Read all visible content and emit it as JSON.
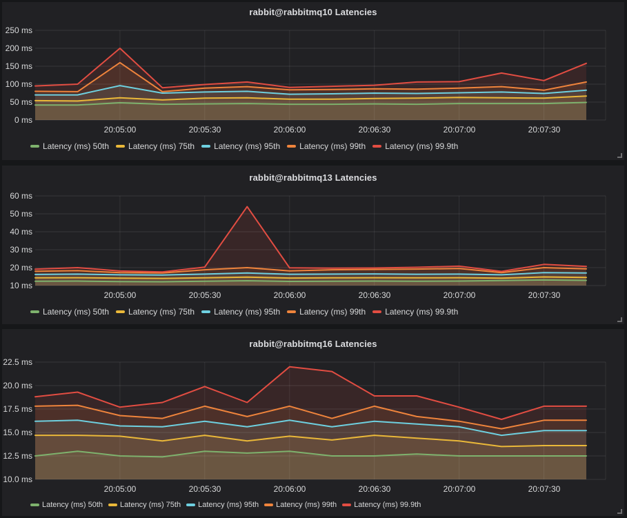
{
  "page": {
    "background": "#161719",
    "panel_background": "#212124"
  },
  "palette": {
    "green": "#7EB26D",
    "yellow": "#EAB839",
    "cyan": "#6ED0E0",
    "orange": "#EF843C",
    "red": "#E24D42"
  },
  "chart_data": [
    {
      "type": "area",
      "title": "rabbit@rabbitmq10 Latencies",
      "unit": "ms",
      "grid": true,
      "legend_position": "bottom",
      "ylim": [
        0,
        250
      ],
      "y_tick_values": [
        0,
        50,
        100,
        150,
        200,
        250
      ],
      "y_tick_labels": [
        "0 ms",
        "50 ms",
        "100 ms",
        "150 ms",
        "200 ms",
        "250 ms"
      ],
      "x_tick_labels": [
        "20:05:00",
        "20:05:30",
        "20:06:00",
        "20:06:30",
        "20:07:00",
        "20:07:30"
      ],
      "x": [
        "20:04:30",
        "20:04:45",
        "20:05:00",
        "20:05:15",
        "20:05:30",
        "20:05:45",
        "20:06:00",
        "20:06:15",
        "20:06:30",
        "20:06:45",
        "20:07:00",
        "20:07:15",
        "20:07:30",
        "20:07:45"
      ],
      "series": [
        {
          "name": "Latency (ms) 50th",
          "color": "#7EB26D",
          "values": [
            42,
            42,
            48,
            44,
            45,
            46,
            44,
            44,
            45,
            44,
            46,
            46,
            46,
            49
          ]
        },
        {
          "name": "Latency (ms) 75th",
          "color": "#EAB839",
          "values": [
            54,
            53,
            62,
            56,
            61,
            62,
            58,
            58,
            60,
            61,
            63,
            62,
            61,
            67
          ]
        },
        {
          "name": "Latency (ms) 95th",
          "color": "#6ED0E0",
          "values": [
            70,
            70,
            96,
            75,
            78,
            80,
            72,
            73,
            75,
            74,
            76,
            78,
            74,
            83
          ]
        },
        {
          "name": "Latency (ms) 99th",
          "color": "#EF843C",
          "values": [
            80,
            79,
            160,
            79,
            89,
            93,
            84,
            85,
            87,
            86,
            89,
            93,
            83,
            106
          ]
        },
        {
          "name": "Latency (ms) 99.9th",
          "color": "#E24D42",
          "values": [
            95,
            100,
            200,
            90,
            99,
            106,
            91,
            94,
            97,
            106,
            107,
            131,
            110,
            158
          ]
        }
      ]
    },
    {
      "type": "area",
      "title": "rabbit@rabbitmq13 Latencies",
      "unit": "ms",
      "grid": true,
      "legend_position": "bottom",
      "ylim": [
        10,
        60
      ],
      "y_tick_values": [
        10,
        20,
        30,
        40,
        50,
        60
      ],
      "y_tick_labels": [
        "10 ms",
        "20 ms",
        "30 ms",
        "40 ms",
        "50 ms",
        "60 ms"
      ],
      "x_tick_labels": [
        "20:05:00",
        "20:05:30",
        "20:06:00",
        "20:06:30",
        "20:07:00",
        "20:07:30"
      ],
      "x": [
        "20:04:30",
        "20:04:45",
        "20:05:00",
        "20:05:15",
        "20:05:30",
        "20:05:45",
        "20:06:00",
        "20:06:15",
        "20:06:30",
        "20:06:45",
        "20:07:00",
        "20:07:15",
        "20:07:30",
        "20:07:45"
      ],
      "series": [
        {
          "name": "Latency (ms) 50th",
          "color": "#7EB26D",
          "values": [
            12.4,
            12.5,
            12.2,
            12.1,
            12.4,
            12.7,
            12.3,
            12.4,
            12.5,
            12.4,
            12.5,
            12.8,
            13.1,
            12.9
          ]
        },
        {
          "name": "Latency (ms) 75th",
          "color": "#EAB839",
          "values": [
            14.3,
            14.4,
            14.1,
            14.0,
            14.3,
            14.7,
            14.2,
            14.3,
            14.4,
            14.3,
            14.4,
            14.1,
            14.8,
            14.5
          ]
        },
        {
          "name": "Latency (ms) 95th",
          "color": "#6ED0E0",
          "values": [
            16.2,
            16.4,
            16.0,
            15.9,
            16.4,
            17.0,
            16.3,
            16.4,
            16.5,
            16.3,
            16.4,
            16.0,
            17.2,
            17.0
          ]
        },
        {
          "name": "Latency (ms) 99th",
          "color": "#EF843C",
          "values": [
            18.0,
            18.3,
            17.2,
            17.0,
            18.8,
            20.0,
            18.2,
            18.8,
            19.0,
            19.2,
            19.5,
            17.2,
            20.0,
            19.3
          ]
        },
        {
          "name": "Latency (ms) 99.9th",
          "color": "#E24D42",
          "values": [
            19.1,
            20.0,
            18.1,
            17.6,
            20.3,
            54.0,
            19.9,
            19.7,
            19.8,
            20.2,
            20.8,
            17.9,
            21.8,
            20.7
          ]
        }
      ]
    },
    {
      "type": "area",
      "title": "rabbit@rabbitmq16 Latencies",
      "unit": "ms",
      "grid": true,
      "legend_position": "bottom",
      "ylim": [
        10,
        22.5
      ],
      "y_tick_values": [
        10,
        12.5,
        15,
        17.5,
        20,
        22.5
      ],
      "y_tick_labels": [
        "10.0 ms",
        "12.5 ms",
        "15.0 ms",
        "17.5 ms",
        "20.0 ms",
        "22.5 ms"
      ],
      "x_tick_labels": [
        "20:05:00",
        "20:05:30",
        "20:06:00",
        "20:06:30",
        "20:07:00",
        "20:07:30"
      ],
      "x": [
        "20:04:30",
        "20:04:45",
        "20:05:00",
        "20:05:15",
        "20:05:30",
        "20:05:45",
        "20:06:00",
        "20:06:15",
        "20:06:30",
        "20:06:45",
        "20:07:00",
        "20:07:15",
        "20:07:30",
        "20:07:45"
      ],
      "series": [
        {
          "name": "Latency (ms) 50th",
          "color": "#7EB26D",
          "values": [
            12.5,
            13.0,
            12.5,
            12.4,
            13.0,
            12.8,
            13.0,
            12.5,
            12.5,
            12.7,
            12.5,
            12.5,
            12.5,
            12.5
          ]
        },
        {
          "name": "Latency (ms) 75th",
          "color": "#EAB839",
          "values": [
            14.7,
            14.7,
            14.6,
            14.1,
            14.7,
            14.1,
            14.6,
            14.2,
            14.7,
            14.4,
            14.1,
            13.5,
            13.6,
            13.6
          ]
        },
        {
          "name": "Latency (ms) 95th",
          "color": "#6ED0E0",
          "values": [
            16.2,
            16.3,
            15.7,
            15.6,
            16.2,
            15.6,
            16.3,
            15.6,
            16.2,
            15.9,
            15.6,
            14.7,
            15.2,
            15.2
          ]
        },
        {
          "name": "Latency (ms) 99th",
          "color": "#EF843C",
          "values": [
            17.8,
            17.9,
            16.8,
            16.5,
            17.8,
            16.7,
            17.8,
            16.5,
            17.8,
            16.7,
            16.2,
            15.4,
            16.3,
            16.3
          ]
        },
        {
          "name": "Latency (ms) 99.9th",
          "color": "#E24D42",
          "values": [
            18.8,
            19.3,
            17.7,
            18.2,
            19.9,
            18.2,
            22.0,
            21.5,
            18.9,
            18.9,
            17.7,
            16.4,
            17.8,
            17.8
          ]
        }
      ]
    }
  ]
}
